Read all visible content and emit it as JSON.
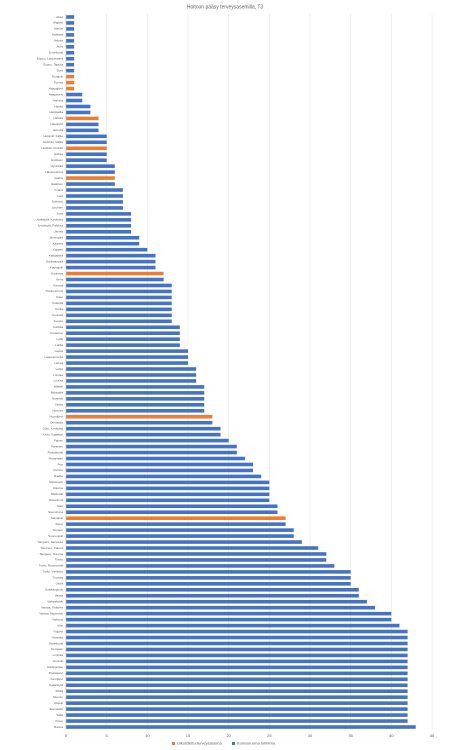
{
  "chart_data": {
    "type": "hbar",
    "title": "Hoitoon pääsy terveysasemilla, T3",
    "categories": [
      "Akaa",
      "Alajärvi",
      "Alavus",
      "Asikkala",
      "Askola",
      "Aura",
      "Enonkoski",
      "Espoo, Leppävaara",
      "Espoo, Tapiola",
      "Eura",
      "Eurajoki",
      "Forssa",
      "Haapajärvi",
      "Haapavesi",
      "Hamina",
      "Hanko",
      "Harjavalta",
      "Hattula",
      "Hausjärvi",
      "Heinola",
      "Helsinki, Kallio",
      "Helsinki, Vallila",
      "Helsinki, Kivikko",
      "Hollola",
      "Huittinen",
      "Hyvinkää",
      "Hämeenlinna",
      "Iisalmi",
      "Ikaalinen",
      "Imatra",
      "Inari",
      "Joensuu",
      "Joroinen",
      "Juva",
      "Jyväskylä, Keskusta",
      "Jyväskylä, Palokka",
      "Jämsä",
      "Järvenpää",
      "Kaarina",
      "Kajaani",
      "Kangasala",
      "Kankaanpää",
      "Kauhajoki",
      "Kauhava",
      "Kemi",
      "Kerava",
      "Kirkkonummi",
      "Kitee",
      "Kokkola",
      "Kotka",
      "Kouvola",
      "Kuopio",
      "Kurikka",
      "Kuusamo",
      "Lahti",
      "Laitila",
      "Lapua",
      "Lappeenranta",
      "Lieksa",
      "Lohja",
      "Loimaa",
      "Loviisa",
      "Mikkeli",
      "Mäntsälä",
      "Naantali",
      "Nokia",
      "Nurmes",
      "Nurmijärvi",
      "Orimattila",
      "Oulu, Keskusta",
      "Oulu, Kaakkuri",
      "Paimio",
      "Parainen",
      "Pieksämäki",
      "Pietarsaari",
      "Pori",
      "Porvoo",
      "Raahe",
      "Raasepori",
      "Rauma",
      "Riihimäki",
      "Rovaniemi",
      "Salo",
      "Savonlinna",
      "Seinäjoki",
      "Sipoo",
      "Somero",
      "Suonenjoki",
      "Tampere, Hervanta",
      "Tampere, Kaleva",
      "Tampere, Tesoma",
      "Tornio",
      "Turku, Runosmäki",
      "Turku, Varissuo",
      "Tuusula",
      "Ulvila",
      "Uusikaupunki",
      "Vaasa",
      "Valkeakoski",
      "Vantaa, Tikkurila",
      "Vantaa, Myyrmäki",
      "Varkaus",
      "Vihti",
      "Ylöjärvi",
      "Ylivieska",
      "Äänekoski",
      "Kempele",
      "Liminka",
      "Kiiminki",
      "Haukipudas",
      "Pudasjärvi",
      "Kemijärvi",
      "Sodankylä",
      "Kittilä",
      "Muonio",
      "Utsjoki",
      "Enontekiö",
      "Salla",
      "Posio",
      "Ranua"
    ],
    "series": [
      {
        "name": "Ulkoistettu terveysasema",
        "color": "#ed7d31",
        "values": [
          null,
          null,
          null,
          null,
          null,
          null,
          null,
          null,
          null,
          null,
          1,
          1,
          1,
          null,
          null,
          null,
          null,
          4,
          null,
          null,
          null,
          null,
          5,
          null,
          null,
          null,
          null,
          6,
          null,
          null,
          null,
          null,
          null,
          null,
          null,
          null,
          null,
          null,
          null,
          null,
          null,
          null,
          null,
          12,
          null,
          null,
          null,
          null,
          null,
          null,
          null,
          null,
          null,
          null,
          null,
          null,
          null,
          null,
          null,
          null,
          null,
          null,
          null,
          null,
          null,
          null,
          null,
          18,
          null,
          null,
          null,
          null,
          null,
          null,
          null,
          null,
          null,
          null,
          null,
          null,
          null,
          null,
          null,
          null,
          27,
          null,
          null,
          null,
          null,
          null,
          null,
          null,
          null,
          null,
          null,
          null,
          null,
          null,
          null,
          null,
          null,
          null,
          null,
          null,
          null,
          null,
          null,
          null,
          null,
          null,
          null,
          null,
          null,
          null,
          null,
          null,
          null,
          null,
          null,
          null
        ]
      },
      {
        "name": "Kunnan oma toiminta",
        "color": "#4472c4",
        "values": [
          1,
          1,
          1,
          1,
          1,
          1,
          1,
          1,
          1,
          1,
          null,
          null,
          null,
          2,
          2,
          3,
          3,
          null,
          4,
          4,
          5,
          5,
          null,
          5,
          5,
          6,
          6,
          null,
          6,
          7,
          7,
          7,
          7,
          8,
          8,
          8,
          8,
          9,
          9,
          10,
          11,
          11,
          11,
          null,
          12,
          13,
          13,
          13,
          13,
          13,
          13,
          13,
          14,
          14,
          14,
          14,
          15,
          15,
          15,
          16,
          16,
          16,
          17,
          17,
          17,
          17,
          17,
          null,
          18,
          19,
          19,
          20,
          21,
          21,
          22,
          23,
          23,
          24,
          25,
          25,
          25,
          25,
          26,
          26,
          null,
          27,
          28,
          28,
          29,
          31,
          32,
          32,
          33,
          35,
          35,
          35,
          36,
          36,
          37,
          38,
          40,
          40,
          41,
          42,
          42,
          42,
          42,
          42,
          42,
          42,
          42,
          42,
          42,
          42,
          42,
          42,
          42,
          42,
          42,
          43
        ]
      }
    ],
    "xlim": [
      0,
      45
    ],
    "xticks": [
      0,
      5,
      10,
      15,
      20,
      25,
      30,
      35,
      40,
      45
    ],
    "grid": true,
    "legend": "bottom"
  }
}
